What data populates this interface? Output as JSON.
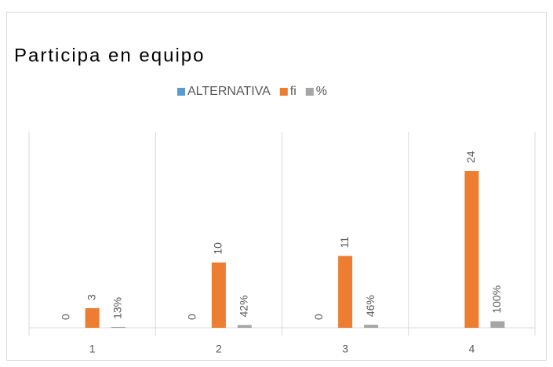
{
  "chart_data": {
    "type": "bar",
    "title": "Participa en equipo",
    "categories": [
      "1",
      "2",
      "3",
      "4"
    ],
    "series": [
      {
        "name": "ALTERNATIVA",
        "color": "#5b9bd5",
        "values": [
          0,
          0,
          0,
          null
        ]
      },
      {
        "name": "fi",
        "color": "#ed7d31",
        "values": [
          3,
          10,
          11,
          24
        ]
      },
      {
        "name": "%",
        "color": "#a5a5a5",
        "values": [
          0.13,
          0.42,
          0.46,
          1.0
        ],
        "value_labels": [
          "13%",
          "42%",
          "46%",
          "100%"
        ]
      }
    ],
    "ylim": [
      0,
      30
    ],
    "legend": "top"
  }
}
